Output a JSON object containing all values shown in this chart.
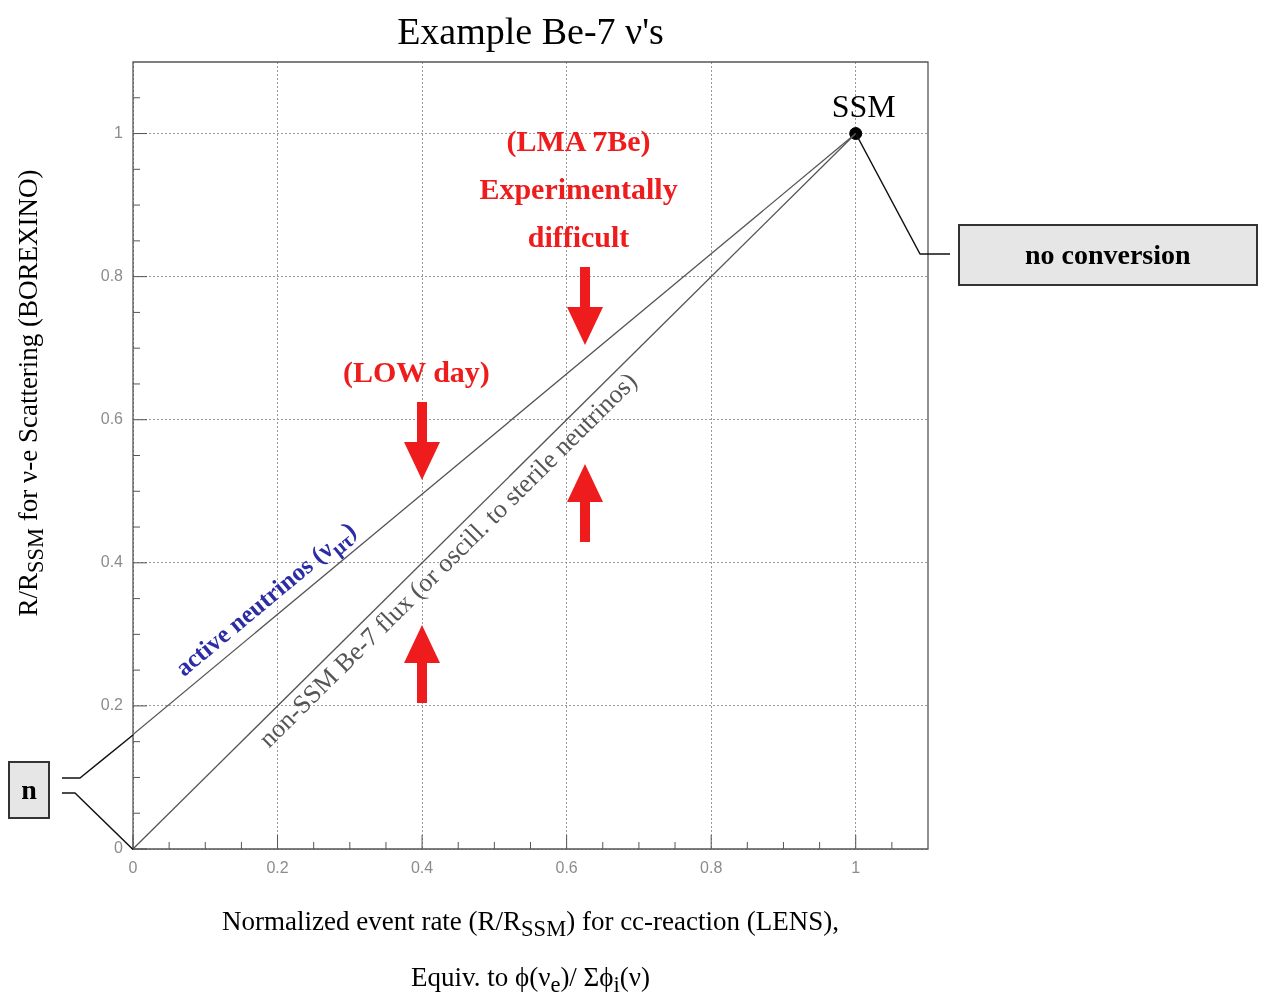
{
  "chart_data": {
    "type": "line",
    "title": "Example Be-7 ν's",
    "xlabel": "Normalized event rate (R/R$_{SSM}$) for cc-reaction (LENS),\nEquiv. to ϕ(ν$_{e}$)/ Σϕ$_{i}$(ν)",
    "ylabel": "R/R$_{SSM}$ for ν-e Scattering (BOREXINO)",
    "xlim": [
      0,
      1.1
    ],
    "ylim": [
      0,
      1.1
    ],
    "xticks": [
      0,
      {
        "value": 0.05,
        "label": null
      },
      {
        "value": 0.1,
        "label": null
      },
      {
        "value": 0.15,
        "label": null
      },
      0.2,
      {
        "value": 0.25,
        "label": null
      },
      {
        "value": 0.3,
        "label": null
      },
      {
        "value": 0.35,
        "label": null
      },
      0.4,
      {
        "value": 0.45,
        "label": null
      },
      {
        "value": 0.5,
        "label": null
      },
      {
        "value": 0.55,
        "label": null
      },
      0.6,
      {
        "value": 0.65,
        "label": null
      },
      {
        "value": 0.7,
        "label": null
      },
      {
        "value": 0.75,
        "label": null
      },
      0.8,
      {
        "value": 0.85,
        "label": null
      },
      {
        "value": 0.9,
        "label": null
      },
      {
        "value": 0.95,
        "label": null
      },
      1,
      {
        "value": 1.05,
        "label": null
      }
    ],
    "yticks": [
      0,
      {
        "value": 0.05,
        "label": null
      },
      {
        "value": 0.1,
        "label": null
      },
      {
        "value": 0.15,
        "label": null
      },
      0.2,
      {
        "value": 0.25,
        "label": null
      },
      {
        "value": 0.3,
        "label": null
      },
      {
        "value": 0.35,
        "label": null
      },
      0.4,
      {
        "value": 0.45,
        "label": null
      },
      {
        "value": 0.5,
        "label": null
      },
      {
        "value": 0.55,
        "label": null
      },
      0.6,
      {
        "value": 0.65,
        "label": null
      },
      {
        "value": 0.7,
        "label": null
      },
      {
        "value": 0.75,
        "label": null
      },
      0.8,
      {
        "value": 0.85,
        "label": null
      },
      {
        "value": 0.9,
        "label": null
      },
      {
        "value": 0.95,
        "label": null
      },
      1,
      {
        "value": 1.05,
        "label": null
      }
    ],
    "grid": true,
    "x": [
      0,
      1
    ],
    "series": [
      {
        "name": "active neutrinos (ν$_{μτ}$)",
        "color": "#555555",
        "values": [
          0.16,
          1
        ]
      },
      {
        "name": "non-SSM Be-7 flux (or oscill. to sterile neutrinos)",
        "color": "#555555",
        "values": [
          0,
          1
        ]
      },
      {
        "name": "SSM",
        "type": "scatter",
        "color": "#000000",
        "marker": "circle",
        "values": [
          null,
          1
        ]
      }
    ],
    "annotations": [
      "(LMA 7Be)\nExperimentally\ndifficult",
      "(LOW day)",
      "no conversion",
      "n"
    ]
  }
}
